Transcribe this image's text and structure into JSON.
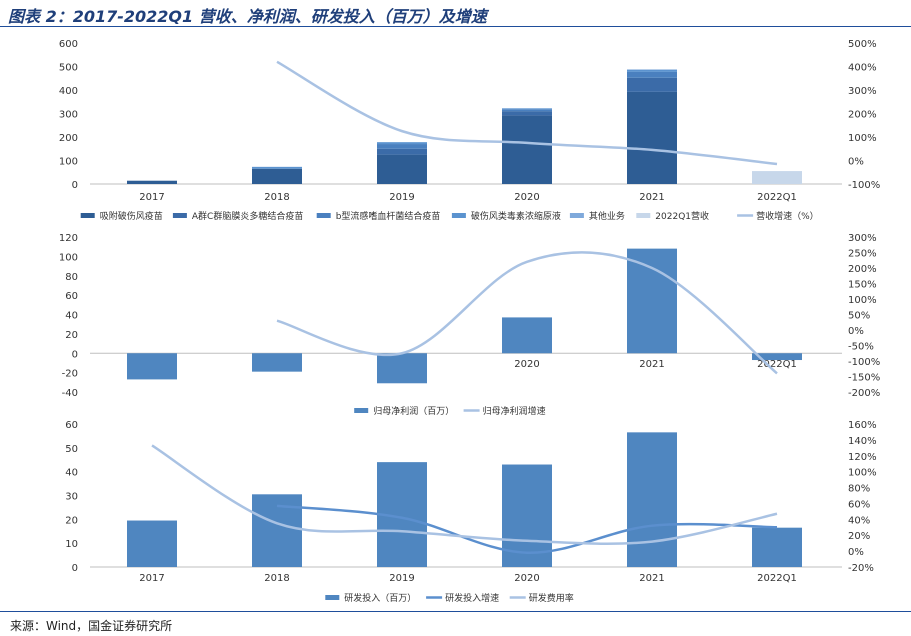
{
  "title": "图表 2：2017-2022Q1 营收、净利润、研发投入（百万）及增速",
  "source": "来源：Wind，国金证券研究所",
  "colors": {
    "c1": "#2e5d94",
    "c2": "#3b6ba8",
    "c3": "#4a80bf",
    "c4": "#5b93cf",
    "c5": "#7fa9db",
    "c6": "#c7d7ea",
    "line_light": "#a9c2e3",
    "bar_main": "#4f86c0",
    "line_mid": "#5b8fce",
    "frame": "#1f4e9b"
  },
  "chart_data": [
    {
      "type": "bar",
      "stacked": true,
      "categories": [
        "2017",
        "2018",
        "2019",
        "2020",
        "2021",
        "2022Q1"
      ],
      "y_left_ticks": [
        "600",
        "500",
        "400",
        "300",
        "200",
        "100",
        "0"
      ],
      "y_right_ticks": [
        "500%",
        "400%",
        "300%",
        "200%",
        "100%",
        "0%",
        "-100%"
      ],
      "ylim": [
        0,
        600
      ],
      "y2lim": [
        -100,
        500
      ],
      "series": [
        {
          "name": "吸附破伤风疫苗",
          "values": [
            14,
            65,
            125,
            292,
            392,
            0
          ]
        },
        {
          "name": "A群C群脑膜炎多糖结合疫苗",
          "values": [
            0,
            0,
            25,
            18,
            60,
            0
          ]
        },
        {
          "name": "b型流感嗜血杆菌结合疫苗",
          "values": [
            0,
            0,
            20,
            8,
            25,
            0
          ]
        },
        {
          "name": "破伤风类毒素浓缩原液",
          "values": [
            0,
            8,
            8,
            4,
            10,
            0
          ]
        },
        {
          "name": "其他业务",
          "values": [
            0,
            0,
            0,
            0,
            0,
            0
          ]
        },
        {
          "name": "2022Q1营收",
          "values": [
            0,
            0,
            0,
            0,
            0,
            55
          ]
        }
      ],
      "line": {
        "name": "营收增速（%）",
        "values": [
          null,
          420,
          125,
          75,
          45,
          -15
        ]
      }
    },
    {
      "type": "bar",
      "categories": [
        "2017",
        "2018",
        "2019",
        "2020",
        "2021",
        "2022Q1"
      ],
      "y_left_ticks": [
        "120",
        "100",
        "80",
        "60",
        "40",
        "20",
        "0",
        "-20",
        "-40"
      ],
      "y_right_ticks": [
        "300%",
        "250%",
        "200%",
        "150%",
        "100%",
        "50%",
        "0%",
        "-50%",
        "-100%",
        "-150%",
        "-200%"
      ],
      "ylim": [
        -40,
        120
      ],
      "y2lim": [
        -200,
        300
      ],
      "series": [
        {
          "name": "归母净利润（百万）",
          "values": [
            -27,
            -19,
            -31,
            37,
            108,
            -7
          ]
        }
      ],
      "line": {
        "name": "归母净利润增速",
        "values": [
          null,
          30,
          -75,
          220,
          200,
          -140
        ]
      }
    },
    {
      "type": "bar",
      "categories": [
        "2017",
        "2018",
        "2019",
        "2020",
        "2021",
        "2022Q1"
      ],
      "y_left_ticks": [
        "60",
        "50",
        "40",
        "30",
        "20",
        "10",
        "0"
      ],
      "y_right_ticks": [
        "160%",
        "140%",
        "120%",
        "100%",
        "80%",
        "60%",
        "40%",
        "20%",
        "0%",
        "-20%"
      ],
      "ylim": [
        0,
        60
      ],
      "y2lim": [
        -20,
        160
      ],
      "series": [
        {
          "name": "研发投入（百万）",
          "values": [
            19.5,
            30.5,
            44,
            43,
            56.5,
            16.5
          ]
        }
      ],
      "lines": [
        {
          "name": "研发投入增速",
          "values": [
            null,
            57,
            42,
            -2,
            32,
            30
          ]
        },
        {
          "name": "研发费用率",
          "values": [
            133,
            35,
            25,
            13,
            12,
            47
          ]
        }
      ]
    }
  ]
}
